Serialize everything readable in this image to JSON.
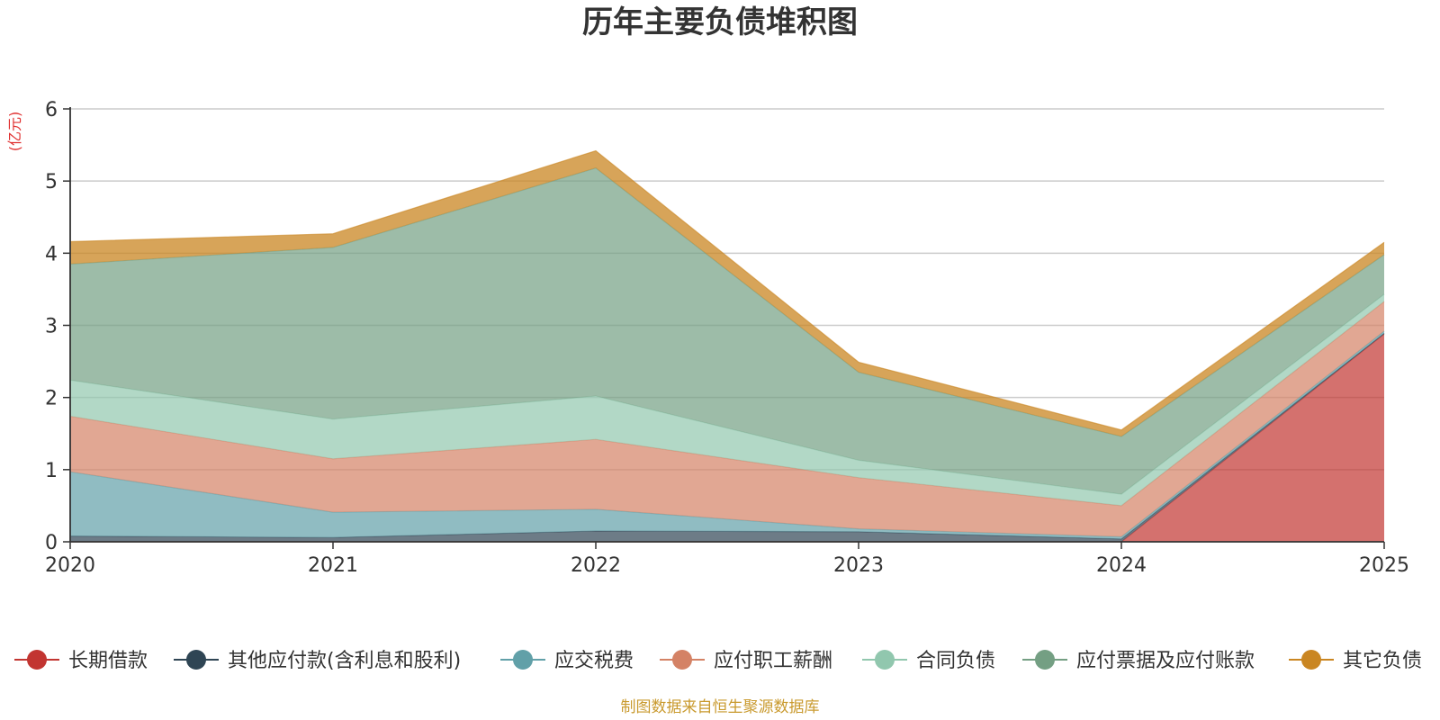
{
  "chart_data": {
    "type": "area",
    "stacked": true,
    "title": "历年主要负债堆积图",
    "unit_label": "(亿元)",
    "x": [
      "2020",
      "2021",
      "2022",
      "2023",
      "2024",
      "2025"
    ],
    "ylim": [
      0,
      6
    ],
    "yticks": [
      "0",
      "1",
      "2",
      "3",
      "4",
      "5",
      "6"
    ],
    "grid": true,
    "legend_position": "bottom",
    "series": [
      {
        "name": "长期借款",
        "color": "#c23531",
        "values": [
          0,
          0,
          0,
          0,
          0,
          2.88
        ]
      },
      {
        "name": "其他应付款(含利息和股利)",
        "color": "#2f4554",
        "values": [
          0.08,
          0.06,
          0.15,
          0.14,
          0.04,
          0.01
        ]
      },
      {
        "name": "应交税费",
        "color": "#61a0a8",
        "values": [
          0.89,
          0.35,
          0.3,
          0.04,
          0.03,
          0.03
        ]
      },
      {
        "name": "应付职工薪酬",
        "color": "#d48265",
        "values": [
          0.77,
          0.74,
          0.97,
          0.71,
          0.43,
          0.41
        ]
      },
      {
        "name": "合同负债",
        "color": "#91c7ae",
        "values": [
          0.5,
          0.55,
          0.6,
          0.24,
          0.16,
          0.1
        ]
      },
      {
        "name": "应付票据及应付账款",
        "color": "#749f83",
        "values": [
          1.61,
          2.38,
          3.16,
          1.22,
          0.8,
          0.55
        ]
      },
      {
        "name": "其它负债",
        "color": "#ca8622",
        "values": [
          0.31,
          0.19,
          0.24,
          0.14,
          0.09,
          0.17
        ]
      }
    ],
    "source_note": "制图数据来自恒生聚源数据库",
    "unit_color": "#e03030",
    "source_color": "#c99a2e"
  }
}
